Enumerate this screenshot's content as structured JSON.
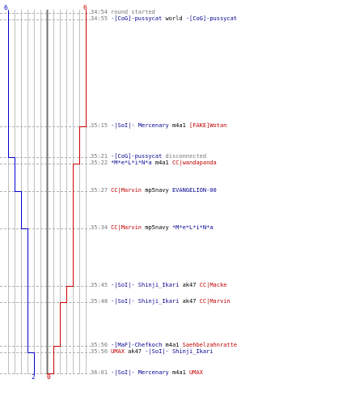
{
  "scores": {
    "blue_start": "6",
    "red_start": "6",
    "blue_end": "2",
    "red_end": "0"
  },
  "colors": {
    "blue": "#0000cc",
    "red": "#cc0000",
    "grid": "#c0c0c0",
    "grid_mid": "#707070",
    "event_line": "#b0b0b0"
  },
  "log": [
    {
      "time": "34:54",
      "parts": [
        {
          "text": "round started",
          "style": "gray"
        }
      ]
    },
    {
      "time": "34:55",
      "parts": [
        {
          "text": "-[CoG]-pussycat",
          "style": "blue"
        },
        {
          "text": " world ",
          "style": "plain"
        },
        {
          "text": "-[CoG]-pussycat",
          "style": "blue"
        }
      ]
    },
    {
      "time": "35:15",
      "parts": [
        {
          "text": "-|SoI|- Mercenary",
          "style": "blue"
        },
        {
          "text": " m4a1 ",
          "style": "plain"
        },
        {
          "text": "[FAKE]Wotan",
          "style": "red"
        }
      ]
    },
    {
      "time": "35:21",
      "parts": [
        {
          "text": "-[CoG]-pussycat",
          "style": "blue"
        },
        {
          "text": " disconnected",
          "style": "gray"
        }
      ]
    },
    {
      "time": "35:22",
      "parts": [
        {
          "text": "*M*e*L*i*N*a",
          "style": "blue"
        },
        {
          "text": " m4a1 ",
          "style": "plain"
        },
        {
          "text": "CC|wandapanda",
          "style": "red"
        }
      ]
    },
    {
      "time": "35:27",
      "parts": [
        {
          "text": "CC|Marvin",
          "style": "red"
        },
        {
          "text": " mp5navy ",
          "style": "plain"
        },
        {
          "text": "EVANGELION-00",
          "style": "blue"
        }
      ]
    },
    {
      "time": "35:34",
      "parts": [
        {
          "text": "CC|Marvin",
          "style": "red"
        },
        {
          "text": " mp5navy ",
          "style": "plain"
        },
        {
          "text": "*M*e*L*i*N*a",
          "style": "blue"
        }
      ]
    },
    {
      "time": "35:45",
      "parts": [
        {
          "text": "-|SoI|- Shinji_Ikari",
          "style": "blue"
        },
        {
          "text": " ak47 ",
          "style": "plain"
        },
        {
          "text": "CC|Macke",
          "style": "red"
        }
      ]
    },
    {
      "time": "35:48",
      "parts": [
        {
          "text": "-|SoI|- Shinji_Ikari",
          "style": "blue"
        },
        {
          "text": " ak47 ",
          "style": "plain"
        },
        {
          "text": "CC|Marvin",
          "style": "red"
        }
      ]
    },
    {
      "time": "35:56",
      "parts": [
        {
          "text": "-[MaF]-Chefkoch",
          "style": "blue"
        },
        {
          "text": " m4a1 ",
          "style": "plain"
        },
        {
          "text": "Saehbelzahnratte",
          "style": "red"
        }
      ]
    },
    {
      "time": "35:56",
      "parts": [
        {
          "text": "UMAX",
          "style": "red"
        },
        {
          "text": " ak47 ",
          "style": "plain"
        },
        {
          "text": "-|SoI|- Shinji_Ikari",
          "style": "blue"
        }
      ]
    },
    {
      "time": "36:01",
      "parts": [
        {
          "text": "-|SoI|- Mercenary",
          "style": "blue"
        },
        {
          "text": " m4a1 ",
          "style": "plain"
        },
        {
          "text": "UMAX",
          "style": "red"
        }
      ]
    }
  ],
  "chart_data": {
    "type": "line",
    "max_players": 6,
    "series": [
      {
        "team": "blue",
        "steps": [
          {
            "event": 0,
            "alive": 6
          },
          {
            "event": 3,
            "alive": 5
          },
          {
            "event": 5,
            "alive": 4
          },
          {
            "event": 6,
            "alive": 3
          },
          {
            "event": 10,
            "alive": 2
          }
        ]
      },
      {
        "team": "red",
        "steps": [
          {
            "event": 0,
            "alive": 6
          },
          {
            "event": 2,
            "alive": 5
          },
          {
            "event": 4,
            "alive": 4
          },
          {
            "event": 7,
            "alive": 3
          },
          {
            "event": 8,
            "alive": 2
          },
          {
            "event": 9,
            "alive": 1
          },
          {
            "event": 11,
            "alive": 0
          }
        ]
      }
    ]
  }
}
